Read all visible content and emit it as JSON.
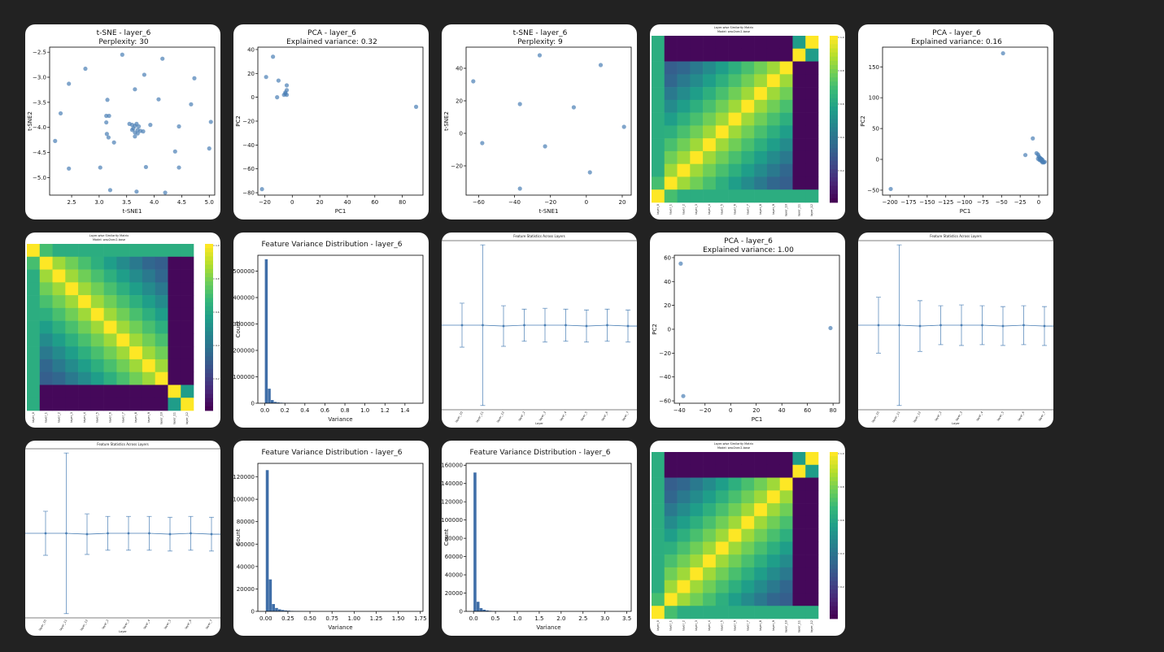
{
  "ui": {
    "accent": "#4a7fb5",
    "background": "#222222",
    "card_background": "#ffffff",
    "bar_color": "#3f6ea8"
  },
  "chart_data": [
    {
      "type": "scatter",
      "title": "t-SNE - layer_6",
      "subtitle": "Perplexity: 30",
      "xlabel": "t-SNE1",
      "ylabel": "t-SNE2",
      "xlim": [
        2.1,
        5.1
      ],
      "ylim": [
        -5.35,
        -2.4
      ],
      "xticks": [
        2.5,
        3.0,
        3.5,
        4.0,
        4.5,
        5.0
      ],
      "xtick_labels": [
        "2.5",
        "3.0",
        "3.5",
        "4.0",
        "4.5",
        "5.0"
      ],
      "yticks": [
        -2.5,
        -3.0,
        -3.5,
        -4.0,
        -4.5,
        -5.0
      ],
      "ytick_labels": [
        "−2.5",
        "−3.0",
        "−3.5",
        "−4.0",
        "−4.5",
        "−5.0"
      ],
      "points": [
        [
          2.45,
          -3.13
        ],
        [
          2.75,
          -2.83
        ],
        [
          3.42,
          -2.55
        ],
        [
          4.15,
          -2.63
        ],
        [
          4.73,
          -3.02
        ],
        [
          2.3,
          -3.72
        ],
        [
          3.15,
          -3.45
        ],
        [
          3.65,
          -3.24
        ],
        [
          3.82,
          -2.95
        ],
        [
          4.08,
          -3.44
        ],
        [
          4.67,
          -3.54
        ],
        [
          3.13,
          -3.77
        ],
        [
          3.18,
          -3.77
        ],
        [
          3.13,
          -3.9
        ],
        [
          2.2,
          -4.27
        ],
        [
          3.14,
          -4.13
        ],
        [
          3.17,
          -4.2
        ],
        [
          3.27,
          -4.3
        ],
        [
          3.55,
          -3.93
        ],
        [
          3.6,
          -3.95
        ],
        [
          3.65,
          -3.97
        ],
        [
          3.68,
          -3.93
        ],
        [
          3.62,
          -4.02
        ],
        [
          3.7,
          -4.05
        ],
        [
          3.75,
          -4.07
        ],
        [
          3.65,
          -4.1
        ],
        [
          3.7,
          -4.12
        ],
        [
          3.8,
          -4.08
        ],
        [
          3.65,
          -4.18
        ],
        [
          3.72,
          -3.98
        ],
        [
          3.6,
          -4.05
        ],
        [
          3.93,
          -3.95
        ],
        [
          4.45,
          -3.98
        ],
        [
          5.03,
          -3.89
        ],
        [
          4.38,
          -4.48
        ],
        [
          5.0,
          -4.42
        ],
        [
          2.45,
          -4.82
        ],
        [
          3.02,
          -4.8
        ],
        [
          3.85,
          -4.79
        ],
        [
          4.45,
          -4.8
        ],
        [
          3.2,
          -5.25
        ],
        [
          3.68,
          -5.28
        ],
        [
          4.2,
          -5.3
        ]
      ]
    },
    {
      "type": "scatter",
      "title": "PCA - layer_6",
      "subtitle": "Explained variance: 0.32",
      "xlabel": "PC1",
      "ylabel": "PC2",
      "xlim": [
        -25,
        95
      ],
      "ylim": [
        -82,
        42
      ],
      "xticks": [
        -20,
        0,
        20,
        40,
        60,
        80
      ],
      "xtick_labels": [
        "−20",
        "0",
        "20",
        "40",
        "60",
        "80"
      ],
      "yticks": [
        40,
        20,
        0,
        -20,
        -40,
        -60,
        -80
      ],
      "ytick_labels": [
        "40",
        "20",
        "0",
        "−20",
        "−40",
        "−60",
        "−80"
      ],
      "points": [
        [
          -14,
          34
        ],
        [
          -19,
          17
        ],
        [
          -10,
          14
        ],
        [
          -4,
          10
        ],
        [
          -4,
          6
        ],
        [
          -11,
          0
        ],
        [
          -5,
          3
        ],
        [
          -6,
          2
        ],
        [
          -5,
          4
        ],
        [
          -4,
          2
        ],
        [
          90,
          -8
        ],
        [
          -22,
          -77
        ]
      ]
    },
    {
      "type": "scatter",
      "title": "t-SNE - layer_6",
      "subtitle": "Perplexity: 9",
      "xlabel": "t-SNE1",
      "ylabel": "t-SNE2",
      "xlim": [
        -67,
        25
      ],
      "ylim": [
        -38,
        53
      ],
      "xticks": [
        -60,
        -40,
        -20,
        0,
        20
      ],
      "xtick_labels": [
        "−60",
        "−40",
        "−20",
        "0",
        "20"
      ],
      "yticks": [
        40,
        20,
        0,
        -20
      ],
      "ytick_labels": [
        "40",
        "20",
        "0",
        "−20"
      ],
      "points": [
        [
          -26,
          48
        ],
        [
          8,
          42
        ],
        [
          -63,
          32
        ],
        [
          -37,
          18
        ],
        [
          -7,
          16
        ],
        [
          21,
          4
        ],
        [
          -58,
          -6
        ],
        [
          -23,
          -8
        ],
        [
          2,
          -24
        ],
        [
          -37,
          -34
        ]
      ]
    },
    {
      "type": "heatmap",
      "title": "Layer-wise Similarity Matrix",
      "subtitle": "Model: wav2vec2-base",
      "size": 13,
      "variant": "anti",
      "row_labels": [
        "layer_0",
        "layer_1",
        "layer_2",
        "layer_3",
        "layer_4",
        "layer_5",
        "layer_6",
        "layer_7",
        "layer_8",
        "layer_9",
        "layer_10",
        "layer_11",
        "layer_12"
      ],
      "colorbar_ticks": [
        "1.0",
        "0.8",
        "0.6",
        "0.4",
        "0.2"
      ]
    },
    {
      "type": "scatter",
      "title": "PCA - layer_6",
      "subtitle": "Explained variance: 0.16",
      "xlabel": "PC1",
      "ylabel": "PC2",
      "xlim": [
        -210,
        12
      ],
      "ylim": [
        -58,
        182
      ],
      "xticks": [
        -200,
        -175,
        -150,
        -125,
        -100,
        -75,
        -50,
        -25,
        0
      ],
      "xtick_labels": [
        "−200",
        "−175",
        "−150",
        "−125",
        "−100",
        "−75",
        "−50",
        "−25",
        "0"
      ],
      "yticks": [
        150,
        100,
        50,
        0,
        -50
      ],
      "ytick_labels": [
        "150",
        "100",
        "50",
        "0",
        "−50"
      ],
      "points": [
        [
          -48,
          172
        ],
        [
          -8,
          34
        ],
        [
          -18,
          7
        ],
        [
          -3,
          10
        ],
        [
          -1,
          8
        ],
        [
          0,
          5
        ],
        [
          1,
          3
        ],
        [
          2,
          2
        ],
        [
          3,
          1
        ],
        [
          4,
          0
        ],
        [
          5,
          -1
        ],
        [
          4,
          -3
        ],
        [
          6,
          -4
        ],
        [
          8,
          -4
        ],
        [
          3,
          -2
        ],
        [
          5,
          -5
        ],
        [
          7,
          -5
        ],
        [
          2,
          0
        ],
        [
          -1,
          1
        ],
        [
          1,
          -1
        ],
        [
          -199,
          -48
        ]
      ]
    },
    {
      "type": "heatmap",
      "title": "Layer-wise Similarity Matrix",
      "subtitle": "Model: wav2vec2-base",
      "size": 13,
      "variant": "main",
      "row_labels": [
        "layer_0",
        "layer_1",
        "layer_2",
        "layer_3",
        "layer_4",
        "layer_5",
        "layer_6",
        "layer_7",
        "layer_8",
        "layer_9",
        "layer_10",
        "layer_11",
        "layer_12"
      ],
      "colorbar_ticks": [
        "1.0",
        "0.8",
        "0.6",
        "0.4",
        "0.2"
      ]
    },
    {
      "type": "bar",
      "title": "Feature Variance Distribution - layer_6",
      "xlabel": "Variance",
      "ylabel": "Count",
      "xlim": [
        -0.07,
        1.58
      ],
      "ylim": [
        0,
        560000
      ],
      "xticks": [
        0,
        0.2,
        0.4,
        0.6,
        0.8,
        1.0,
        1.2,
        1.4
      ],
      "xtick_labels": [
        "0.0",
        "0.2",
        "0.4",
        "0.6",
        "0.8",
        "1.0",
        "1.2",
        "1.4"
      ],
      "yticks": [
        0,
        100000,
        200000,
        300000,
        400000,
        500000
      ],
      "ytick_labels": [
        "0",
        "100000",
        "200000",
        "300000",
        "400000",
        "500000"
      ],
      "bin_start": 0,
      "bin_width": 0.03,
      "values": [
        545000,
        55000,
        12000,
        5000,
        3000,
        2000,
        1500,
        1000,
        700,
        500,
        400,
        300,
        200,
        150,
        100,
        80,
        60,
        50,
        40,
        30
      ]
    },
    {
      "type": "errorbar",
      "title": "Feature Statistics Across Layers",
      "xlabel": "Layer",
      "categories": [
        "layer_10",
        "layer_11",
        "layer_12",
        "layer_2",
        "layer_3",
        "layer_4",
        "layer_5",
        "layer_6",
        "layer_7"
      ],
      "ylim": [
        -1.0,
        1.0
      ],
      "values": [
        0.0,
        0.0,
        -0.01,
        0.0,
        0.0,
        0.0,
        -0.01,
        0.0,
        -0.01
      ],
      "errors": [
        0.26,
        0.95,
        0.24,
        0.19,
        0.2,
        0.19,
        0.19,
        0.19,
        0.19
      ]
    },
    {
      "type": "scatter",
      "title": "PCA - layer_6",
      "subtitle": "Explained variance: 1.00",
      "xlabel": "PC1",
      "ylabel": "PC2",
      "xlim": [
        -44,
        85
      ],
      "ylim": [
        -62,
        62
      ],
      "xticks": [
        -40,
        -20,
        0,
        20,
        40,
        60,
        80
      ],
      "xtick_labels": [
        "−40",
        "−20",
        "0",
        "20",
        "40",
        "60",
        "80"
      ],
      "yticks": [
        60,
        40,
        20,
        0,
        -20,
        -40,
        -60
      ],
      "ytick_labels": [
        "60",
        "40",
        "20",
        "0",
        "−20",
        "−40",
        "−60"
      ],
      "points": [
        [
          -39,
          55
        ],
        [
          -37,
          -56
        ],
        [
          78,
          1
        ]
      ]
    },
    {
      "type": "errorbar",
      "title": "Feature Statistics Across Layers",
      "xlabel": "Layer",
      "categories": [
        "layer_10",
        "layer_11",
        "layer_12",
        "layer_2",
        "layer_3",
        "layer_4",
        "layer_5",
        "layer_6",
        "layer_7"
      ],
      "ylim": [
        -1.0,
        1.0
      ],
      "values": [
        0.0,
        0.0,
        -0.01,
        0.0,
        0.0,
        0.0,
        -0.01,
        0.0,
        -0.01
      ],
      "errors": [
        0.33,
        0.95,
        0.3,
        0.23,
        0.24,
        0.23,
        0.23,
        0.23,
        0.23
      ]
    },
    {
      "type": "errorbar",
      "title": "Feature Statistics Across Layers",
      "xlabel": "Layer",
      "categories": [
        "layer_10",
        "layer_11",
        "layer_12",
        "layer_2",
        "layer_3",
        "layer_4",
        "layer_5",
        "layer_6",
        "layer_7"
      ],
      "ylim": [
        -1.0,
        1.0
      ],
      "values": [
        0.0,
        0.0,
        -0.01,
        0.0,
        0.0,
        0.0,
        -0.01,
        0.0,
        -0.01
      ],
      "errors": [
        0.26,
        0.95,
        0.24,
        0.2,
        0.2,
        0.2,
        0.2,
        0.2,
        0.2
      ]
    },
    {
      "type": "bar",
      "title": "Feature Variance Distribution - layer_6",
      "xlabel": "Variance",
      "ylabel": "Count",
      "xlim": [
        -0.09,
        1.78
      ],
      "ylim": [
        0,
        132000
      ],
      "xticks": [
        0,
        0.25,
        0.5,
        0.75,
        1.0,
        1.25,
        1.5,
        1.75
      ],
      "xtick_labels": [
        "0.00",
        "0.25",
        "0.50",
        "0.75",
        "1.00",
        "1.25",
        "1.50",
        "1.75"
      ],
      "yticks": [
        0,
        20000,
        40000,
        60000,
        80000,
        100000,
        120000
      ],
      "ytick_labels": [
        "0",
        "20000",
        "40000",
        "60000",
        "80000",
        "100000",
        "120000"
      ],
      "bin_start": 0,
      "bin_width": 0.035,
      "values": [
        126000,
        28500,
        6500,
        3000,
        1800,
        1200,
        800,
        600,
        400,
        300,
        250,
        200,
        150,
        120,
        100,
        80,
        60
      ]
    },
    {
      "type": "bar",
      "title": "Feature Variance Distribution - layer_6",
      "xlabel": "Variance",
      "ylabel": "Count",
      "xlim": [
        -0.17,
        3.6
      ],
      "ylim": [
        0,
        162000
      ],
      "xticks": [
        0,
        0.5,
        1.0,
        1.5,
        2.0,
        2.5,
        3.0,
        3.5
      ],
      "xtick_labels": [
        "0.0",
        "0.5",
        "1.0",
        "1.5",
        "2.0",
        "2.5",
        "3.0",
        "3.5"
      ],
      "yticks": [
        0,
        20000,
        40000,
        60000,
        80000,
        100000,
        120000,
        140000,
        160000
      ],
      "ytick_labels": [
        "0",
        "20000",
        "40000",
        "60000",
        "80000",
        "100000",
        "120000",
        "140000",
        "160000"
      ],
      "bin_start": 0,
      "bin_width": 0.07,
      "values": [
        152000,
        10500,
        3500,
        1800,
        1000,
        600,
        400,
        300,
        200,
        150,
        100,
        80
      ]
    },
    {
      "type": "heatmap",
      "title": "Layer-wise Similarity Matrix",
      "subtitle": "Model: wav2vec2-base",
      "size": 13,
      "variant": "anti",
      "row_labels": [
        "layer_0",
        "layer_1",
        "layer_2",
        "layer_3",
        "layer_4",
        "layer_5",
        "layer_6",
        "layer_7",
        "layer_8",
        "layer_9",
        "layer_10",
        "layer_11",
        "layer_12"
      ],
      "colorbar_ticks": [
        "1.0",
        "0.8",
        "0.6",
        "0.4",
        "0.2"
      ]
    }
  ]
}
